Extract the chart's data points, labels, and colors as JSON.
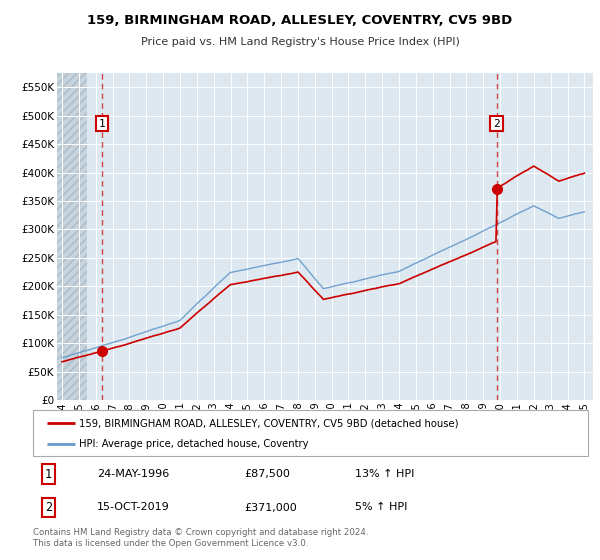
{
  "title": "159, BIRMINGHAM ROAD, ALLESLEY, COVENTRY, CV5 9BD",
  "subtitle": "Price paid vs. HM Land Registry's House Price Index (HPI)",
  "legend_line1": "159, BIRMINGHAM ROAD, ALLESLEY, COVENTRY, CV5 9BD (detached house)",
  "legend_line2": "HPI: Average price, detached house, Coventry",
  "annotation1_date": "24-MAY-1996",
  "annotation1_price": "£87,500",
  "annotation1_hpi": "13% ↑ HPI",
  "annotation2_date": "15-OCT-2019",
  "annotation2_price": "£371,000",
  "annotation2_hpi": "5% ↑ HPI",
  "footer": "Contains HM Land Registry data © Crown copyright and database right 2024.\nThis data is licensed under the Open Government Licence v3.0.",
  "red_color": "#cc0000",
  "blue_color": "#6699cc",
  "sale1_x": 1996.38,
  "sale1_y": 87500,
  "sale2_x": 2019.79,
  "sale2_y": 371000,
  "ylim": [
    0,
    575000
  ],
  "yticks": [
    0,
    50000,
    100000,
    150000,
    200000,
    250000,
    300000,
    350000,
    400000,
    450000,
    500000,
    550000
  ],
  "ytick_labels": [
    "£0",
    "£50K",
    "£100K",
    "£150K",
    "£200K",
    "£250K",
    "£300K",
    "£350K",
    "£400K",
    "£450K",
    "£500K",
    "£550K"
  ],
  "xlim_start": 1993.7,
  "xlim_end": 2025.5,
  "xticks": [
    1994,
    1995,
    1996,
    1997,
    1998,
    1999,
    2000,
    2001,
    2002,
    2003,
    2004,
    2005,
    2006,
    2007,
    2008,
    2009,
    2010,
    2011,
    2012,
    2013,
    2014,
    2015,
    2016,
    2017,
    2018,
    2019,
    2020,
    2021,
    2022,
    2023,
    2024,
    2025
  ],
  "hatch_end": 1995.5,
  "bg_color": "#dde8f0",
  "hatch_color": "#c8d8e8"
}
